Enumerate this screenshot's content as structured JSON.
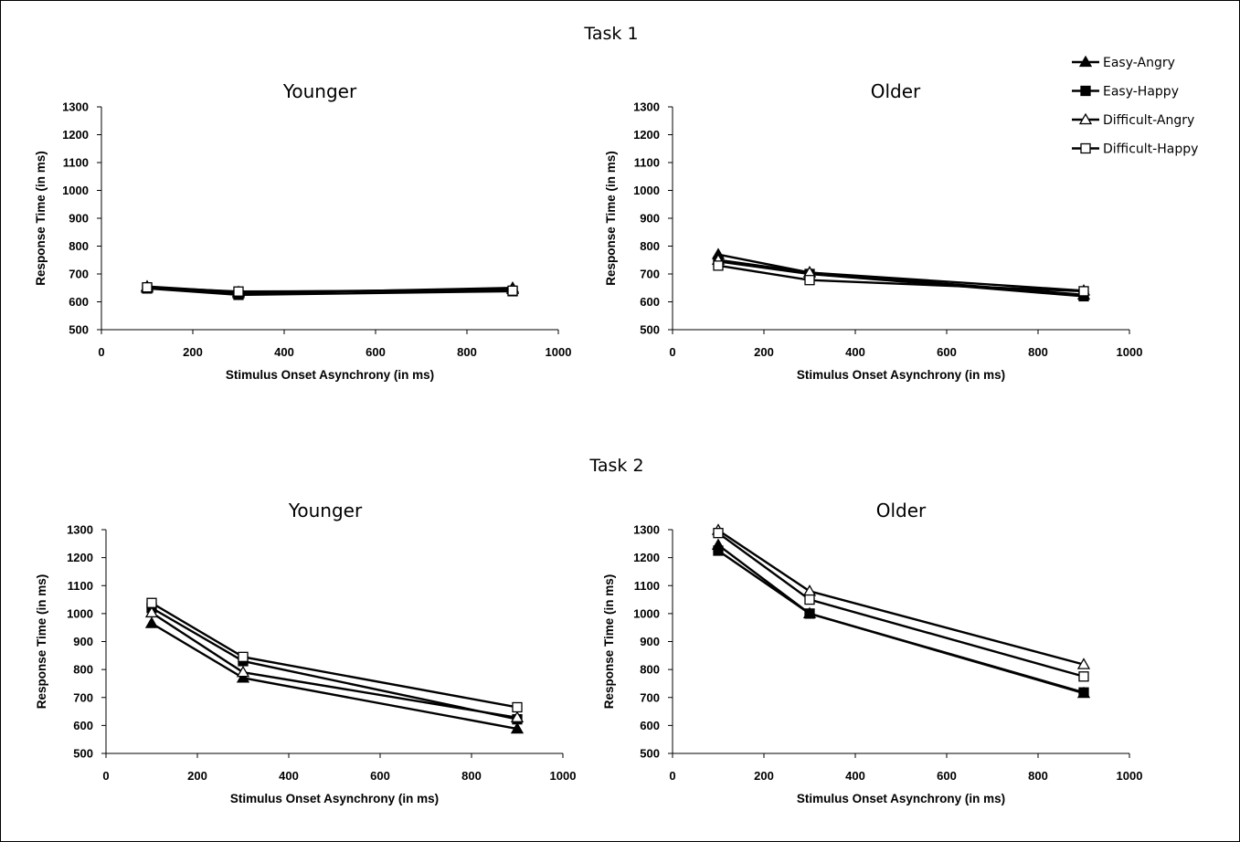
{
  "figure": {
    "task1_title": "Task 1",
    "task2_title": "Task 2"
  },
  "legend": {
    "entries": [
      "Easy-Angry",
      "Easy-Happy",
      "Difficult-Angry",
      "Difficult-Happy"
    ],
    "markers": [
      "filled-triangle",
      "filled-square",
      "open-triangle",
      "open-square"
    ]
  },
  "chart_data": [
    {
      "type": "line",
      "title": "Younger",
      "group": "Task 1",
      "xlabel": "Stimulus Onset Asynchrony (in ms)",
      "ylabel": "Response Time (in ms)",
      "xlim": [
        0,
        1000
      ],
      "ylim": [
        500,
        1300
      ],
      "xticks": [
        0,
        200,
        400,
        600,
        800,
        1000
      ],
      "yticks": [
        500,
        600,
        700,
        800,
        900,
        1000,
        1100,
        1200,
        1300
      ],
      "x": [
        100,
        300,
        900
      ],
      "series": [
        {
          "name": "Easy-Angry",
          "values": [
            650,
            630,
            650
          ]
        },
        {
          "name": "Easy-Happy",
          "values": [
            648,
            625,
            638
          ]
        },
        {
          "name": "Difficult-Angry",
          "values": [
            655,
            635,
            645
          ]
        },
        {
          "name": "Difficult-Happy",
          "values": [
            652,
            637,
            640
          ]
        }
      ]
    },
    {
      "type": "line",
      "title": "Older",
      "group": "Task 1",
      "xlabel": "Stimulus Onset Asynchrony (in ms)",
      "ylabel": "Response Time (in ms)",
      "xlim": [
        0,
        1000
      ],
      "ylim": [
        500,
        1300
      ],
      "xticks": [
        0,
        200,
        400,
        600,
        800,
        1000
      ],
      "yticks": [
        500,
        600,
        700,
        800,
        900,
        1000,
        1100,
        1200,
        1300
      ],
      "x": [
        100,
        300,
        900
      ],
      "series": [
        {
          "name": "Easy-Angry",
          "values": [
            770,
            705,
            625
          ]
        },
        {
          "name": "Easy-Happy",
          "values": [
            745,
            700,
            620
          ]
        },
        {
          "name": "Difficult-Angry",
          "values": [
            750,
            705,
            640
          ]
        },
        {
          "name": "Difficult-Happy",
          "values": [
            730,
            678,
            638
          ]
        }
      ]
    },
    {
      "type": "line",
      "title": "Younger",
      "group": "Task 2",
      "xlabel": "Stimulus Onset Asynchrony (in ms)",
      "ylabel": "Response Time (in ms)",
      "xlim": [
        0,
        1000
      ],
      "ylim": [
        500,
        1300
      ],
      "xticks": [
        0,
        200,
        400,
        600,
        800,
        1000
      ],
      "yticks": [
        500,
        600,
        700,
        800,
        900,
        1000,
        1100,
        1200,
        1300
      ],
      "x": [
        100,
        300,
        900
      ],
      "series": [
        {
          "name": "Easy-Angry",
          "values": [
            965,
            770,
            588
          ]
        },
        {
          "name": "Easy-Happy",
          "values": [
            1020,
            830,
            622
          ]
        },
        {
          "name": "Difficult-Angry",
          "values": [
            1003,
            790,
            628
          ]
        },
        {
          "name": "Difficult-Happy",
          "values": [
            1038,
            845,
            665
          ]
        }
      ]
    },
    {
      "type": "line",
      "title": "Older",
      "group": "Task 2",
      "xlabel": "Stimulus Onset Asynchrony (in ms)",
      "ylabel": "Response Time (in ms)",
      "xlim": [
        0,
        1000
      ],
      "ylim": [
        500,
        1300
      ],
      "xticks": [
        0,
        200,
        400,
        600,
        800,
        1000
      ],
      "yticks": [
        500,
        600,
        700,
        800,
        900,
        1000,
        1100,
        1200,
        1300
      ],
      "x": [
        100,
        300,
        900
      ],
      "series": [
        {
          "name": "Easy-Angry",
          "values": [
            1245,
            1000,
            715
          ]
        },
        {
          "name": "Easy-Happy",
          "values": [
            1225,
            1000,
            718
          ]
        },
        {
          "name": "Difficult-Angry",
          "values": [
            1298,
            1080,
            818
          ]
        },
        {
          "name": "Difficult-Happy",
          "values": [
            1288,
            1050,
            775
          ]
        }
      ]
    }
  ]
}
